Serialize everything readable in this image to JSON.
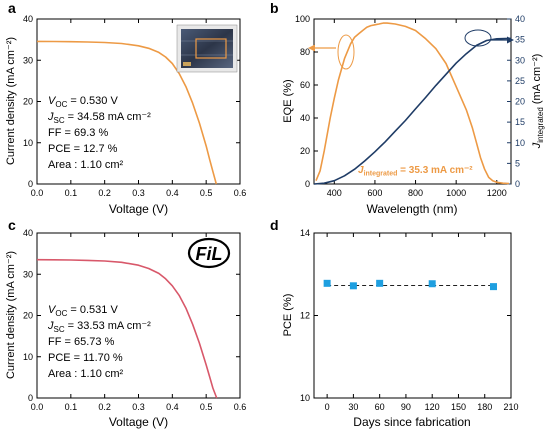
{
  "colors": {
    "orange": "#ED9A45",
    "navy": "#1F3C66",
    "red": "#D8586A",
    "cyan": "#1E9FE0",
    "axis": "#000000"
  },
  "chart_data": [
    {
      "panel": "a",
      "type": "line",
      "title": "",
      "xlabel": "Voltage (V)",
      "ylabel": "Current density (mA cm⁻²)",
      "xlim": [
        0,
        0.6
      ],
      "ylim": [
        0,
        40
      ],
      "xticks": [
        "0.0",
        "0.1",
        "0.2",
        "0.3",
        "0.4",
        "0.5",
        "0.6"
      ],
      "yticks": [
        "0",
        "10",
        "20",
        "30",
        "40"
      ],
      "series": [
        {
          "color": "orange",
          "x": [
            0.0,
            0.05,
            0.1,
            0.15,
            0.2,
            0.25,
            0.3,
            0.33,
            0.36,
            0.38,
            0.4,
            0.42,
            0.44,
            0.46,
            0.48,
            0.5,
            0.51,
            0.52,
            0.53
          ],
          "y": [
            34.58,
            34.55,
            34.5,
            34.42,
            34.3,
            34.05,
            33.5,
            32.9,
            31.9,
            30.8,
            29.2,
            26.8,
            23.6,
            19.6,
            14.8,
            9.2,
            6.0,
            3.0,
            0.0
          ]
        }
      ],
      "annotations": [
        {
          "label": "V",
          "sub": "OC",
          "value": " = 0.530 V"
        },
        {
          "label": "J",
          "sub": "SC",
          "value": " = 34.58 mA cm⁻²"
        },
        {
          "label": "FF",
          "sub": "",
          "value": " = 69.3 %"
        },
        {
          "label": "PCE",
          "sub": "",
          "value": " = 12.7 %"
        },
        {
          "label": "Area",
          "sub": "",
          "value": " : 1.10 cm²"
        }
      ]
    },
    {
      "panel": "b",
      "type": "line",
      "title": "",
      "xlabel": "Wavelength (nm)",
      "ylabel": "EQE (%)",
      "ylabel_right": "J",
      "ylabel_right_sub": "integrated",
      "ylabel_right_unit": " (mA cm⁻²)",
      "xlim": [
        300,
        1270
      ],
      "ylim": [
        0,
        100
      ],
      "ylim_right": [
        0,
        40
      ],
      "xticks": [
        "400",
        "600",
        "800",
        "1000",
        "1200"
      ],
      "yticks": [
        "0",
        "20",
        "40",
        "60",
        "80",
        "100"
      ],
      "yticks_right": [
        "0",
        "5",
        "10",
        "15",
        "20",
        "25",
        "30",
        "35",
        "40"
      ],
      "series": [
        {
          "color": "orange",
          "axis": "left",
          "x": [
            310,
            330,
            350,
            380,
            400,
            420,
            450,
            480,
            500,
            520,
            540,
            560,
            580,
            600,
            620,
            640,
            660,
            700,
            750,
            800,
            850,
            900,
            950,
            1000,
            1050,
            1080,
            1100,
            1120,
            1140,
            1160,
            1180,
            1200,
            1230,
            1260
          ],
          "y": [
            2,
            8,
            20,
            40,
            52,
            63,
            76,
            85,
            89,
            91,
            93,
            95,
            96,
            96.5,
            97,
            97.5,
            97.5,
            97,
            95.5,
            93,
            88,
            82,
            73,
            59,
            45,
            34,
            25,
            16,
            9,
            4,
            2,
            1,
            0.5,
            0.3
          ]
        },
        {
          "color": "navy",
          "axis": "right",
          "x": [
            300,
            350,
            400,
            450,
            500,
            550,
            600,
            650,
            700,
            750,
            800,
            850,
            900,
            950,
            1000,
            1050,
            1100,
            1150,
            1200,
            1270
          ],
          "y": [
            0,
            0.2,
            0.8,
            2.0,
            3.6,
            5.6,
            7.8,
            10.2,
            12.8,
            15.4,
            18.2,
            21.0,
            23.9,
            26.6,
            29.3,
            31.6,
            33.6,
            34.8,
            35.2,
            35.3
          ]
        }
      ],
      "annotation": {
        "prefix": "J",
        "sub": "integrated",
        "value": " = 35.3 mA cm⁻²"
      }
    },
    {
      "panel": "c",
      "type": "line",
      "title": "",
      "xlabel": "Voltage (V)",
      "ylabel": "Current density (mA cm⁻²)",
      "xlim": [
        0,
        0.6
      ],
      "ylim": [
        0,
        40
      ],
      "xticks": [
        "0.0",
        "0.1",
        "0.2",
        "0.3",
        "0.4",
        "0.5",
        "0.6"
      ],
      "yticks": [
        "0",
        "10",
        "20",
        "30",
        "40"
      ],
      "series": [
        {
          "color": "red",
          "x": [
            0.0,
            0.05,
            0.1,
            0.15,
            0.2,
            0.25,
            0.3,
            0.33,
            0.36,
            0.38,
            0.4,
            0.42,
            0.44,
            0.46,
            0.48,
            0.5,
            0.51,
            0.52,
            0.531
          ],
          "y": [
            33.53,
            33.5,
            33.45,
            33.36,
            33.2,
            32.9,
            32.2,
            31.4,
            30.2,
            28.9,
            27.2,
            24.9,
            21.8,
            17.9,
            13.3,
            8.0,
            5.2,
            2.4,
            0.0
          ]
        }
      ],
      "annotations": [
        {
          "label": "V",
          "sub": "OC",
          "value": " = 0.531 V"
        },
        {
          "label": "J",
          "sub": "SC",
          "value": " = 33.53 mA cm⁻²"
        },
        {
          "label": "FF",
          "sub": "",
          "value": " = 65.73 %"
        },
        {
          "label": "PCE",
          "sub": "",
          "value": " = 11.70 %"
        },
        {
          "label": "Area",
          "sub": "",
          "value": " : 1.10 cm²"
        }
      ],
      "logo": "FiL"
    },
    {
      "panel": "d",
      "type": "scatter",
      "title": "",
      "xlabel": "Days since fabrication",
      "ylabel": "PCE (%)",
      "xlim": [
        -15,
        210
      ],
      "ylim": [
        10,
        14
      ],
      "xticks": [
        "0",
        "30",
        "60",
        "90",
        "120",
        "150",
        "180",
        "210"
      ],
      "yticks": [
        "10",
        "12",
        "14"
      ],
      "series": [
        {
          "color": "cyan",
          "marker": "square",
          "x": [
            0,
            30,
            60,
            120,
            190
          ],
          "y": [
            12.78,
            12.72,
            12.78,
            12.77,
            12.7
          ]
        }
      ],
      "fit_line": {
        "style": "dashed",
        "y": 12.73
      }
    }
  ]
}
